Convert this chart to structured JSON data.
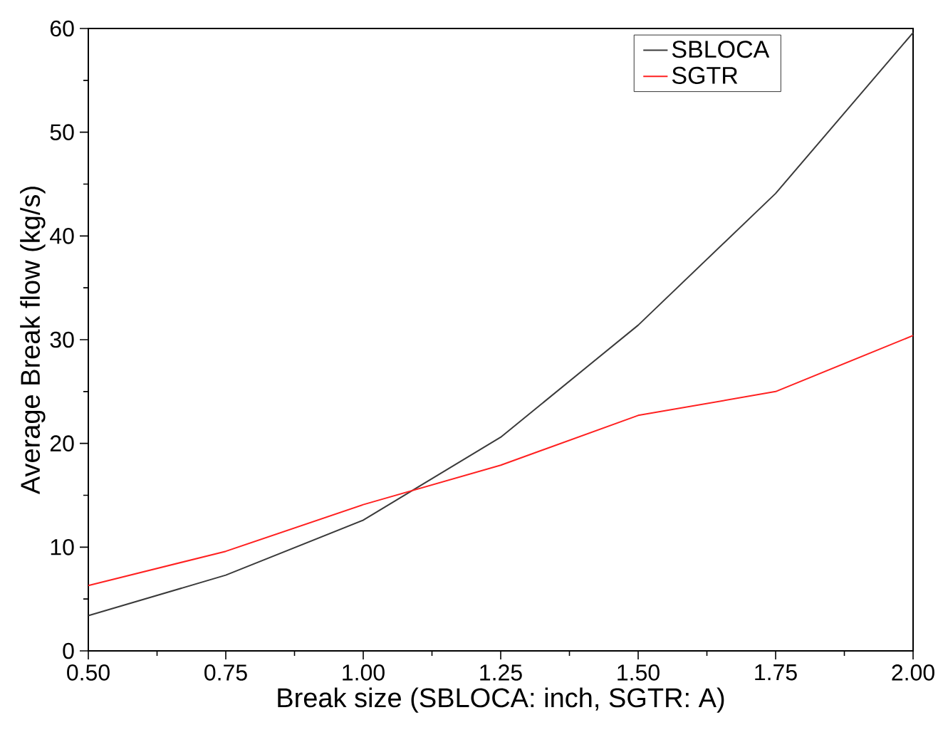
{
  "chart_data": {
    "type": "line",
    "xlabel": "Break size (SBLOCA: inch, SGTR: A)",
    "ylabel": "Average Break flow (kg/s)",
    "x": [
      0.5,
      0.75,
      1.0,
      1.25,
      1.5,
      1.75,
      2.0
    ],
    "series": [
      {
        "name": "SBLOCA",
        "color": "#3a3a3a",
        "values": [
          3.4,
          7.3,
          12.6,
          20.6,
          31.4,
          44.1,
          59.6
        ]
      },
      {
        "name": "SGTR",
        "color": "#ff2020",
        "values": [
          6.3,
          9.6,
          14.1,
          17.9,
          22.7,
          25.0,
          30.4
        ]
      }
    ],
    "xlim": [
      0.5,
      2.0
    ],
    "ylim": [
      0,
      60
    ],
    "xticks": [
      {
        "value": 0.5,
        "label": "0.50"
      },
      {
        "value": 0.75,
        "label": "0.75"
      },
      {
        "value": 1.0,
        "label": "1.00"
      },
      {
        "value": 1.25,
        "label": "1.25"
      },
      {
        "value": 1.5,
        "label": "1.50"
      },
      {
        "value": 1.75,
        "label": "1.75"
      },
      {
        "value": 2.0,
        "label": "2.00"
      }
    ],
    "yticks": [
      0,
      10,
      20,
      30,
      40,
      50,
      60
    ],
    "legend": "top right",
    "grid": false,
    "marker": "none",
    "line_style": "solid"
  }
}
